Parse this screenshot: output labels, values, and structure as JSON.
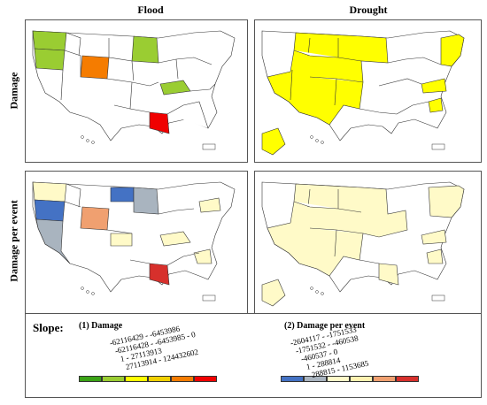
{
  "columns": {
    "flood": "Flood",
    "drought": "Drought"
  },
  "rows": {
    "damage": "Damage",
    "per_event": "Damage per event"
  },
  "legend": {
    "slope_label": "Slope:",
    "damage": {
      "title": "(1) Damage",
      "classes": [
        {
          "label": "-62116429 - -6453986",
          "color": "#3aa315"
        },
        {
          "label": "-62116428 - -6453985 - 0",
          "color": "#9acd32"
        },
        {
          "label": "1 - 27113913",
          "color": "#ffff00"
        },
        {
          "label": "27113914 - 124432602",
          "color": "#f0d000"
        },
        {
          "label": "",
          "color": "#f57c00"
        },
        {
          "label": "",
          "color": "#f00000"
        }
      ]
    },
    "per_event": {
      "title": "(2) Damage per event",
      "classes": [
        {
          "label": "-2604117 - -1751533",
          "color": "#4472c4"
        },
        {
          "label": "-1751532 - -460538",
          "color": "#a9b4bf"
        },
        {
          "label": "-460537 - 0",
          "color": "#fffac8"
        },
        {
          "label": "1 - 288814",
          "color": "#fff2b0"
        },
        {
          "label": "288815 - 1153685",
          "color": "#f0a070"
        },
        {
          "label": "",
          "color": "#d7302c"
        }
      ]
    }
  },
  "colors": {
    "flood_damage": {
      "west_nw": "#9acd32",
      "wy": "#f57c00",
      "mn": "#9acd32",
      "ky": "#9acd32",
      "la": "#f00000"
    },
    "drought_damage": "#ffff00",
    "flood_per_event": {
      "blue": "#4472c4",
      "gray": "#a9b4bf",
      "orange": "#f0a070",
      "red": "#d7302c",
      "pale": "#fffac8"
    },
    "drought_per_event": "#fffac8"
  }
}
